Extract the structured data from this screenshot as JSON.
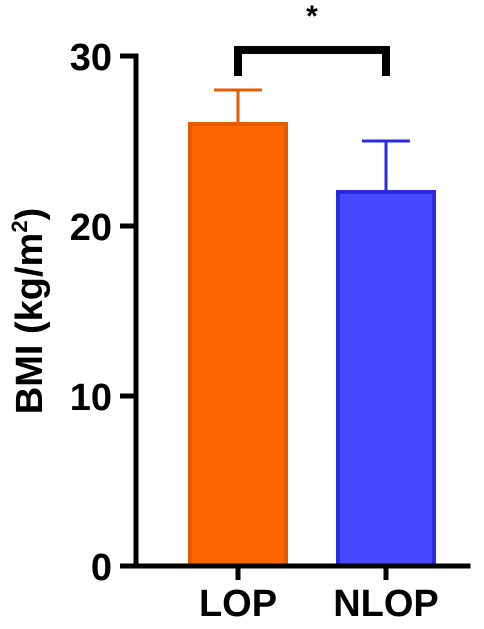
{
  "chart_data": {
    "type": "bar",
    "title": "",
    "xlabel": "",
    "ylabel": "BMI (kg/m",
    "ylabel_superscript": "2",
    "ylabel_close": ")",
    "ylim": [
      0,
      30
    ],
    "yticks": [
      0,
      10,
      20,
      30
    ],
    "ytick_labels": [
      "0",
      "10",
      "20",
      "30"
    ],
    "grid": false,
    "legend": "none",
    "categories": [
      "LOP",
      "NLOP"
    ],
    "values": [
      26,
      22
    ],
    "error_upper": [
      28,
      25
    ],
    "bar_fill_colors": [
      "#ff6600",
      "#4848ff"
    ],
    "bar_edge_colors": [
      "#e55c00",
      "#2a2ae0"
    ],
    "significance": {
      "between": [
        "LOP",
        "NLOP"
      ],
      "label": "*"
    }
  }
}
